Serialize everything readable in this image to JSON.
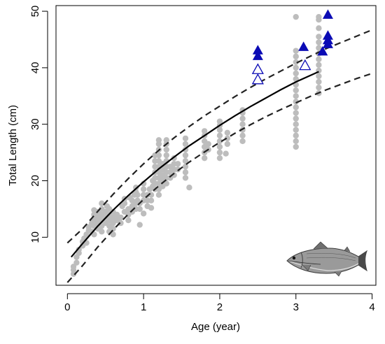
{
  "chart_data": {
    "type": "scatter",
    "title": "",
    "xlabel": "Age (year)",
    "ylabel": "Total Length (cm)",
    "xlim": [
      -0.15,
      4.05
    ],
    "ylim": [
      1.5,
      51
    ],
    "xticks": [
      0,
      1,
      2,
      3,
      4
    ],
    "yticks": [
      10,
      20,
      30,
      40,
      50
    ],
    "grid": false,
    "legend": "none",
    "colors": {
      "points": "#bdbdbd",
      "triangles": "#0b0bb5",
      "curve": "#000000"
    },
    "series": [
      {
        "kind": "scatter-circles",
        "values": [
          [
            0.08,
            3.5
          ],
          [
            0.08,
            4.2
          ],
          [
            0.08,
            4.8
          ],
          [
            0.12,
            5.5
          ],
          [
            0.12,
            6.5
          ],
          [
            0.15,
            7.2
          ],
          [
            0.15,
            7.8
          ],
          [
            0.2,
            8.5
          ],
          [
            0.2,
            9.2
          ],
          [
            0.22,
            9.8
          ],
          [
            0.25,
            9.0
          ],
          [
            0.25,
            10.5
          ],
          [
            0.28,
            11.2
          ],
          [
            0.28,
            11.8
          ],
          [
            0.32,
            12.5
          ],
          [
            0.32,
            11.0
          ],
          [
            0.35,
            13.0
          ],
          [
            0.35,
            14.0
          ],
          [
            0.35,
            14.8
          ],
          [
            0.35,
            12.0
          ],
          [
            0.35,
            10.5
          ],
          [
            0.4,
            11.5
          ],
          [
            0.4,
            12.5
          ],
          [
            0.4,
            13.5
          ],
          [
            0.4,
            14.5
          ],
          [
            0.45,
            11.0
          ],
          [
            0.45,
            12.0
          ],
          [
            0.45,
            13.0
          ],
          [
            0.45,
            14.0
          ],
          [
            0.45,
            15.0
          ],
          [
            0.45,
            16.0
          ],
          [
            0.5,
            12.5
          ],
          [
            0.5,
            13.5
          ],
          [
            0.5,
            14.5
          ],
          [
            0.52,
            15.5
          ],
          [
            0.55,
            11.0
          ],
          [
            0.55,
            12.0
          ],
          [
            0.55,
            13.0
          ],
          [
            0.55,
            14.0
          ],
          [
            0.55,
            15.0
          ],
          [
            0.6,
            10.5
          ],
          [
            0.6,
            11.5
          ],
          [
            0.6,
            12.5
          ],
          [
            0.6,
            13.5
          ],
          [
            0.6,
            14.5
          ],
          [
            0.65,
            13.0
          ],
          [
            0.65,
            14.0
          ],
          [
            0.7,
            12.5
          ],
          [
            0.7,
            13.5
          ],
          [
            0.72,
            15.5
          ],
          [
            0.75,
            14.5
          ],
          [
            0.75,
            16.0
          ],
          [
            0.75,
            16.8
          ],
          [
            0.8,
            13.0
          ],
          [
            0.8,
            14.0
          ],
          [
            0.8,
            15.0
          ],
          [
            0.82,
            17.0
          ],
          [
            0.85,
            14.5
          ],
          [
            0.85,
            15.5
          ],
          [
            0.85,
            16.5
          ],
          [
            0.88,
            17.5
          ],
          [
            0.9,
            15.0
          ],
          [
            0.9,
            16.0
          ],
          [
            0.9,
            18.0
          ],
          [
            0.9,
            18.8
          ],
          [
            0.92,
            16.5
          ],
          [
            0.92,
            17.5
          ],
          [
            0.95,
            12.2
          ],
          [
            0.95,
            15.0
          ],
          [
            0.95,
            16.0
          ],
          [
            1.0,
            16.5
          ],
          [
            1.0,
            17.5
          ],
          [
            1.0,
            18.5
          ],
          [
            1.0,
            19.5
          ],
          [
            1.0,
            14.2
          ],
          [
            1.05,
            15.5
          ],
          [
            1.05,
            16.5
          ],
          [
            1.05,
            17.5
          ],
          [
            1.08,
            18.5
          ],
          [
            1.1,
            15.2
          ],
          [
            1.1,
            16.5
          ],
          [
            1.1,
            17.5
          ],
          [
            1.12,
            19.0
          ],
          [
            1.12,
            20.0
          ],
          [
            1.15,
            18.5
          ],
          [
            1.15,
            19.5
          ],
          [
            1.15,
            20.5
          ],
          [
            1.15,
            21.5
          ],
          [
            1.15,
            22.5
          ],
          [
            1.15,
            23.5
          ],
          [
            1.15,
            24.5
          ],
          [
            1.2,
            17.5
          ],
          [
            1.2,
            18.5
          ],
          [
            1.2,
            19.5
          ],
          [
            1.2,
            20.5
          ],
          [
            1.2,
            21.5
          ],
          [
            1.2,
            22.5
          ],
          [
            1.2,
            23.5
          ],
          [
            1.2,
            24.5
          ],
          [
            1.2,
            25.5
          ],
          [
            1.2,
            26.5
          ],
          [
            1.2,
            27.2
          ],
          [
            1.25,
            19.0
          ],
          [
            1.25,
            20.0
          ],
          [
            1.25,
            21.0
          ],
          [
            1.25,
            22.0
          ],
          [
            1.25,
            23.0
          ],
          [
            1.3,
            19.5
          ],
          [
            1.3,
            20.5
          ],
          [
            1.3,
            21.5
          ],
          [
            1.3,
            22.5
          ],
          [
            1.3,
            23.5
          ],
          [
            1.3,
            24.5
          ],
          [
            1.3,
            25.5
          ],
          [
            1.3,
            26.5
          ],
          [
            1.3,
            27.2
          ],
          [
            1.35,
            20.5
          ],
          [
            1.35,
            21.5
          ],
          [
            1.35,
            22.5
          ],
          [
            1.4,
            21.0
          ],
          [
            1.4,
            22.0
          ],
          [
            1.4,
            23.0
          ],
          [
            1.4,
            24.0
          ],
          [
            1.45,
            22.0
          ],
          [
            1.45,
            23.0
          ],
          [
            1.55,
            20.5
          ],
          [
            1.55,
            21.5
          ],
          [
            1.55,
            22.5
          ],
          [
            1.55,
            23.5
          ],
          [
            1.55,
            24.5
          ],
          [
            1.55,
            25.5
          ],
          [
            1.55,
            26.5
          ],
          [
            1.55,
            27.5
          ],
          [
            1.6,
            18.8
          ],
          [
            1.8,
            24.0
          ],
          [
            1.8,
            25.0
          ],
          [
            1.8,
            26.0
          ],
          [
            1.8,
            27.0
          ],
          [
            1.8,
            28.0
          ],
          [
            1.8,
            28.8
          ],
          [
            1.85,
            25.5
          ],
          [
            1.85,
            26.5
          ],
          [
            2.0,
            24.0
          ],
          [
            2.0,
            25.0
          ],
          [
            2.0,
            26.0
          ],
          [
            2.0,
            27.0
          ],
          [
            2.0,
            28.0
          ],
          [
            2.0,
            29.0
          ],
          [
            2.0,
            29.8
          ],
          [
            2.0,
            30.5
          ],
          [
            2.08,
            24.8
          ],
          [
            2.1,
            26.5
          ],
          [
            2.1,
            27.5
          ],
          [
            2.1,
            28.5
          ],
          [
            2.3,
            27.0
          ],
          [
            2.3,
            28.0
          ],
          [
            2.3,
            29.0
          ],
          [
            2.3,
            30.0
          ],
          [
            2.3,
            31.0
          ],
          [
            2.3,
            32.0
          ],
          [
            2.3,
            32.5
          ],
          [
            3.0,
            26.0
          ],
          [
            3.0,
            27.0
          ],
          [
            3.0,
            28.0
          ],
          [
            3.0,
            29.0
          ],
          [
            3.0,
            30.0
          ],
          [
            3.0,
            31.0
          ],
          [
            3.0,
            32.0
          ],
          [
            3.0,
            33.0
          ],
          [
            3.0,
            34.0
          ],
          [
            3.0,
            35.0
          ],
          [
            3.0,
            36.0
          ],
          [
            3.0,
            37.0
          ],
          [
            3.0,
            38.0
          ],
          [
            3.0,
            39.0
          ],
          [
            3.0,
            40.0
          ],
          [
            3.0,
            41.0
          ],
          [
            3.0,
            42.0
          ],
          [
            3.0,
            43.0
          ],
          [
            3.0,
            49.0
          ],
          [
            3.3,
            35.5
          ],
          [
            3.3,
            36.5
          ],
          [
            3.3,
            37.5
          ],
          [
            3.3,
            38.5
          ],
          [
            3.3,
            39.5
          ],
          [
            3.3,
            40.5
          ],
          [
            3.3,
            41.5
          ],
          [
            3.3,
            42.5
          ],
          [
            3.3,
            43.5
          ],
          [
            3.3,
            44.5
          ],
          [
            3.3,
            45.5
          ],
          [
            3.3,
            47.0
          ],
          [
            3.3,
            48.5
          ],
          [
            3.3,
            49.0
          ]
        ]
      },
      {
        "kind": "filled-triangles",
        "values": [
          [
            2.5,
            43.2
          ],
          [
            2.5,
            42.2
          ],
          [
            3.1,
            43.8
          ],
          [
            3.35,
            43.0
          ],
          [
            3.42,
            49.5
          ],
          [
            3.42,
            45.8
          ],
          [
            3.42,
            45.0
          ],
          [
            3.42,
            44.3
          ]
        ]
      },
      {
        "kind": "open-triangles",
        "values": [
          [
            2.5,
            39.8
          ],
          [
            2.5,
            38.0
          ],
          [
            3.12,
            40.5
          ]
        ]
      },
      {
        "kind": "fitted-curve",
        "values": [
          [
            0.05,
            6.5
          ],
          [
            0.2,
            8.9
          ],
          [
            0.4,
            12.0
          ],
          [
            0.6,
            14.8
          ],
          [
            0.8,
            17.4
          ],
          [
            1.0,
            19.8
          ],
          [
            1.2,
            22.1
          ],
          [
            1.4,
            24.2
          ],
          [
            1.6,
            26.2
          ],
          [
            1.8,
            28.0
          ],
          [
            2.0,
            29.8
          ],
          [
            2.2,
            31.5
          ],
          [
            2.4,
            33.1
          ],
          [
            2.6,
            34.6
          ],
          [
            2.8,
            36.1
          ],
          [
            3.0,
            37.5
          ],
          [
            3.3,
            39.3
          ]
        ]
      },
      {
        "kind": "upper-bound",
        "values": [
          [
            0.0,
            9.0
          ],
          [
            0.2,
            11.5
          ],
          [
            0.4,
            14.6
          ],
          [
            0.6,
            17.6
          ],
          [
            0.8,
            20.4
          ],
          [
            1.0,
            23.0
          ],
          [
            1.2,
            25.4
          ],
          [
            1.4,
            27.6
          ],
          [
            1.6,
            29.6
          ],
          [
            1.8,
            31.5
          ],
          [
            2.0,
            33.2
          ],
          [
            2.2,
            34.9
          ],
          [
            2.4,
            36.5
          ],
          [
            2.6,
            38.0
          ],
          [
            2.8,
            39.4
          ],
          [
            3.0,
            40.8
          ],
          [
            3.2,
            42.1
          ],
          [
            3.4,
            43.4
          ],
          [
            3.6,
            44.5
          ],
          [
            3.8,
            45.6
          ],
          [
            4.0,
            46.7
          ]
        ]
      },
      {
        "kind": "lower-bound",
        "values": [
          [
            0.0,
            2.0
          ],
          [
            0.2,
            5.0
          ],
          [
            0.4,
            8.3
          ],
          [
            0.6,
            11.3
          ],
          [
            0.8,
            14.1
          ],
          [
            1.0,
            16.7
          ],
          [
            1.2,
            19.1
          ],
          [
            1.4,
            21.3
          ],
          [
            1.6,
            23.3
          ],
          [
            1.8,
            25.1
          ],
          [
            2.0,
            26.8
          ],
          [
            2.2,
            28.4
          ],
          [
            2.4,
            29.9
          ],
          [
            2.6,
            31.3
          ],
          [
            2.8,
            32.6
          ],
          [
            3.0,
            33.8
          ],
          [
            3.2,
            35.0
          ],
          [
            3.4,
            36.1
          ],
          [
            3.6,
            37.1
          ],
          [
            3.8,
            38.1
          ],
          [
            4.0,
            39.0
          ]
        ]
      }
    ],
    "illustration": "fish-drawing"
  }
}
